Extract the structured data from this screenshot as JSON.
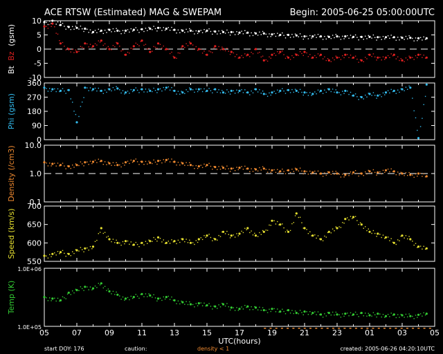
{
  "header": {
    "title": "ACE RTSW (Estimated) MAG & SWEPAM",
    "begin": "Begin: 2005-06-25 05:00:00UTC"
  },
  "footer": {
    "start_doy": "start DOY: 176",
    "caution": "caution:",
    "density_note": "density < 1",
    "created": "created: 2005-06-26 04:20:10UTC"
  },
  "colors": {
    "bt": "#ffffff",
    "bz": "#e02020",
    "phi": "#33bbee",
    "density": "#f08a30",
    "speed": "#e6e030",
    "temp": "#33cc33",
    "axes": "#ffffff",
    "background": "#000000"
  },
  "chart_data": [
    {
      "type": "scatter",
      "panel": "mag",
      "ylabel_parts": [
        "Bt",
        "Bz",
        "(gsm)"
      ],
      "ylim": [
        -10,
        10
      ],
      "yticks": [
        10,
        5,
        0,
        -5,
        -10
      ],
      "reference_line": 0,
      "x_unit": "hours since 2005-06-25 05:00 UTC",
      "series": [
        {
          "name": "Bt",
          "x": [
            0,
            0.5,
            1,
            1.5,
            2,
            2.5,
            3,
            3.5,
            4,
            4.5,
            5,
            5.5,
            6,
            6.5,
            7,
            7.5,
            8,
            8.5,
            9,
            9.5,
            10,
            10.5,
            11,
            11.5,
            12,
            12.5,
            13,
            13.5,
            14,
            14.5,
            15,
            15.5,
            16,
            16.5,
            17,
            17.5,
            18,
            18.5,
            19,
            19.5,
            20,
            20.5,
            21,
            21.5,
            22,
            22.5,
            23,
            23.5
          ],
          "values": [
            9.5,
            10,
            8.5,
            7.8,
            7.5,
            7.2,
            6,
            6.5,
            6.8,
            6.5,
            6.5,
            6.8,
            7,
            7.2,
            7.5,
            7.2,
            6.8,
            6.5,
            6.5,
            6.3,
            6.5,
            6.2,
            6,
            6,
            5.8,
            5.8,
            5.5,
            5.5,
            5.2,
            5,
            5,
            4.8,
            4.5,
            4.5,
            4.5,
            4.3,
            4.5,
            4.5,
            4.3,
            4.3,
            4.3,
            4.2,
            4.2,
            4.2,
            4,
            4,
            3.8,
            3.8
          ]
        },
        {
          "name": "Bz",
          "x": [
            0,
            0.5,
            1,
            1.5,
            2,
            2.5,
            3,
            3.5,
            4,
            4.5,
            5,
            5.5,
            6,
            6.5,
            7,
            7.5,
            8,
            8.5,
            9,
            9.5,
            10,
            10.5,
            11,
            11.5,
            12,
            12.5,
            13,
            13.5,
            14,
            14.5,
            15,
            15.5,
            16,
            16.5,
            17,
            17.5,
            18,
            18.5,
            19,
            19.5,
            20,
            20.5,
            21,
            21.5,
            22,
            22.5,
            23,
            23.5
          ],
          "values": [
            8,
            9,
            2,
            0,
            -1,
            2,
            1,
            3,
            0,
            2,
            -2,
            1,
            3,
            -1,
            2,
            0,
            -3,
            1,
            2,
            0,
            -2,
            1,
            0,
            -1,
            -3,
            -2,
            0,
            -4,
            -2,
            -1,
            -3,
            -2,
            -1,
            -3,
            -2,
            -4,
            -3,
            -2,
            -3,
            -4,
            -2,
            -3,
            -3,
            -2,
            -4,
            -3,
            -2,
            -3
          ]
        }
      ]
    },
    {
      "type": "scatter",
      "panel": "phi",
      "ylabel": "Phi (gsm)",
      "ylim": [
        0,
        360
      ],
      "yticks": [
        360,
        270,
        180,
        90,
        0
      ],
      "series": [
        {
          "name": "Phi",
          "x": [
            0,
            0.5,
            1,
            1.5,
            2,
            2.5,
            3,
            3.5,
            4,
            4.5,
            5,
            5.5,
            6,
            6.5,
            7,
            7.5,
            8,
            8.5,
            9,
            9.5,
            10,
            10.5,
            11,
            11.5,
            12,
            12.5,
            13,
            13.5,
            14,
            14.5,
            15,
            15.5,
            16,
            16.5,
            17,
            17.5,
            18,
            18.5,
            19,
            19.5,
            20,
            20.5,
            21,
            21.5,
            22,
            22.5,
            23,
            23.5
          ],
          "values": [
            330,
            320,
            310,
            315,
            110,
            330,
            320,
            310,
            320,
            325,
            300,
            315,
            320,
            310,
            320,
            330,
            310,
            300,
            320,
            320,
            310,
            320,
            300,
            310,
            310,
            300,
            320,
            290,
            300,
            310,
            315,
            310,
            300,
            290,
            310,
            320,
            300,
            310,
            280,
            270,
            290,
            280,
            300,
            310,
            320,
            330,
            10,
            350
          ]
        }
      ]
    },
    {
      "type": "scatter",
      "panel": "density",
      "ylabel": "Density (/cm3)",
      "yscale": "log",
      "ylim": [
        0.1,
        10
      ],
      "yticks": [
        10.0,
        1.0,
        0.1
      ],
      "ytick_labels": [
        "10.0",
        "1.0",
        "0.1"
      ],
      "reference_line": 1.0,
      "series": [
        {
          "name": "Density",
          "x": [
            0,
            0.5,
            1,
            1.5,
            2,
            2.5,
            3,
            3.5,
            4,
            4.5,
            5,
            5.5,
            6,
            6.5,
            7,
            7.5,
            8,
            8.5,
            9,
            9.5,
            10,
            10.5,
            11,
            11.5,
            12,
            12.5,
            13,
            13.5,
            14,
            14.5,
            15,
            15.5,
            16,
            16.5,
            17,
            17.5,
            18,
            18.5,
            19,
            19.5,
            20,
            20.5,
            21,
            21.5,
            22,
            22.5,
            23,
            23.5
          ],
          "values": [
            2.5,
            2.2,
            2.0,
            1.8,
            2.0,
            2.5,
            2.6,
            2.8,
            2.3,
            2.0,
            2.5,
            2.8,
            2.6,
            2.4,
            2.8,
            3.0,
            2.6,
            2.3,
            2.0,
            1.8,
            2.0,
            1.7,
            1.6,
            1.5,
            1.6,
            1.5,
            1.4,
            1.5,
            1.3,
            1.2,
            1.3,
            1.4,
            1.2,
            1.1,
            1.0,
            1.1,
            1.0,
            0.9,
            1.1,
            1.0,
            1.2,
            1.1,
            1.3,
            1.2,
            1.0,
            0.9,
            1.0,
            0.8
          ]
        }
      ]
    },
    {
      "type": "scatter",
      "panel": "speed",
      "ylabel": "Speed (km/s)",
      "ylim": [
        550,
        700
      ],
      "yticks": [
        700,
        650,
        600,
        550
      ],
      "series": [
        {
          "name": "Speed",
          "x": [
            0,
            0.5,
            1,
            1.5,
            2,
            2.5,
            3,
            3.5,
            4,
            4.5,
            5,
            5.5,
            6,
            6.5,
            7,
            7.5,
            8,
            8.5,
            9,
            9.5,
            10,
            10.5,
            11,
            11.5,
            12,
            12.5,
            13,
            13.5,
            14,
            14.5,
            15,
            15.5,
            16,
            16.5,
            17,
            17.5,
            18,
            18.5,
            19,
            19.5,
            20,
            20.5,
            21,
            21.5,
            22,
            22.5,
            23,
            23.5
          ],
          "values": [
            565,
            570,
            575,
            570,
            580,
            585,
            590,
            640,
            610,
            600,
            605,
            595,
            600,
            605,
            615,
            600,
            605,
            610,
            600,
            610,
            620,
            610,
            630,
            620,
            625,
            640,
            620,
            630,
            660,
            650,
            630,
            680,
            640,
            620,
            610,
            630,
            640,
            665,
            670,
            650,
            630,
            625,
            615,
            600,
            620,
            610,
            590,
            585
          ]
        }
      ]
    },
    {
      "type": "scatter",
      "panel": "temp",
      "ylabel": "Temp (K)",
      "yscale": "log",
      "ylim": [
        100000,
        1000000
      ],
      "yticks": [
        1000000,
        100000
      ],
      "ytick_labels": [
        "1.0E+06",
        "1.0E+05"
      ],
      "xlabel": "UTC(hours)",
      "xtick_labels": [
        "05",
        "07",
        "09",
        "11",
        "13",
        "15",
        "17",
        "19",
        "21",
        "23",
        "01",
        "03",
        "05"
      ],
      "series": [
        {
          "name": "Temp",
          "x": [
            0,
            0.5,
            1,
            1.5,
            2,
            2.5,
            3,
            3.5,
            4,
            4.5,
            5,
            5.5,
            6,
            6.5,
            7,
            7.5,
            8,
            8.5,
            9,
            9.5,
            10,
            10.5,
            11,
            11.5,
            12,
            12.5,
            13,
            13.5,
            14,
            14.5,
            15,
            15.5,
            16,
            16.5,
            17,
            17.5,
            18,
            18.5,
            19,
            19.5,
            20,
            20.5,
            21,
            21.5,
            22,
            22.5,
            23,
            23.5
          ],
          "values": [
            320000,
            300000,
            280000,
            380000,
            420000,
            480000,
            450000,
            550000,
            400000,
            350000,
            300000,
            320000,
            360000,
            340000,
            300000,
            320000,
            280000,
            260000,
            240000,
            250000,
            230000,
            220000,
            240000,
            210000,
            200000,
            220000,
            210000,
            190000,
            200000,
            180000,
            190000,
            170000,
            180000,
            170000,
            160000,
            170000,
            160000,
            165000,
            160000,
            170000,
            155000,
            165000,
            150000,
            160000,
            155000,
            150000,
            158000,
            165000
          ]
        }
      ]
    }
  ]
}
